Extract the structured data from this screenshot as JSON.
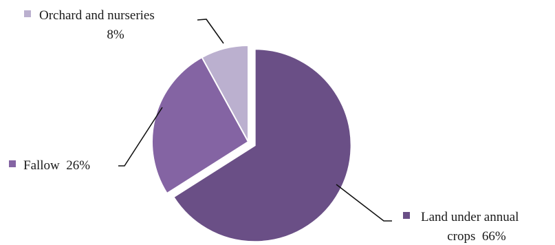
{
  "chart_data": {
    "type": "pie",
    "title": "",
    "slices": [
      {
        "label": "Land under annual crops",
        "label_lines": [
          "Land under annual",
          "crops  66%"
        ],
        "value": 66,
        "percent_label": "66%",
        "color": "#6a4f86",
        "exploded": true
      },
      {
        "label": "Fallow",
        "label_lines": [
          "Fallow  26%"
        ],
        "value": 26,
        "percent_label": "26%",
        "color": "#8464a3",
        "exploded": false
      },
      {
        "label": "Orchard and nurseries",
        "label_lines": [
          "Orchard and nurseries",
          "8%"
        ],
        "value": 8,
        "percent_label": "8%",
        "color": "#bbb0cf",
        "exploded": false
      }
    ],
    "start_angle_deg": 0,
    "direction": "clockwise",
    "legend": "inline-labels"
  }
}
